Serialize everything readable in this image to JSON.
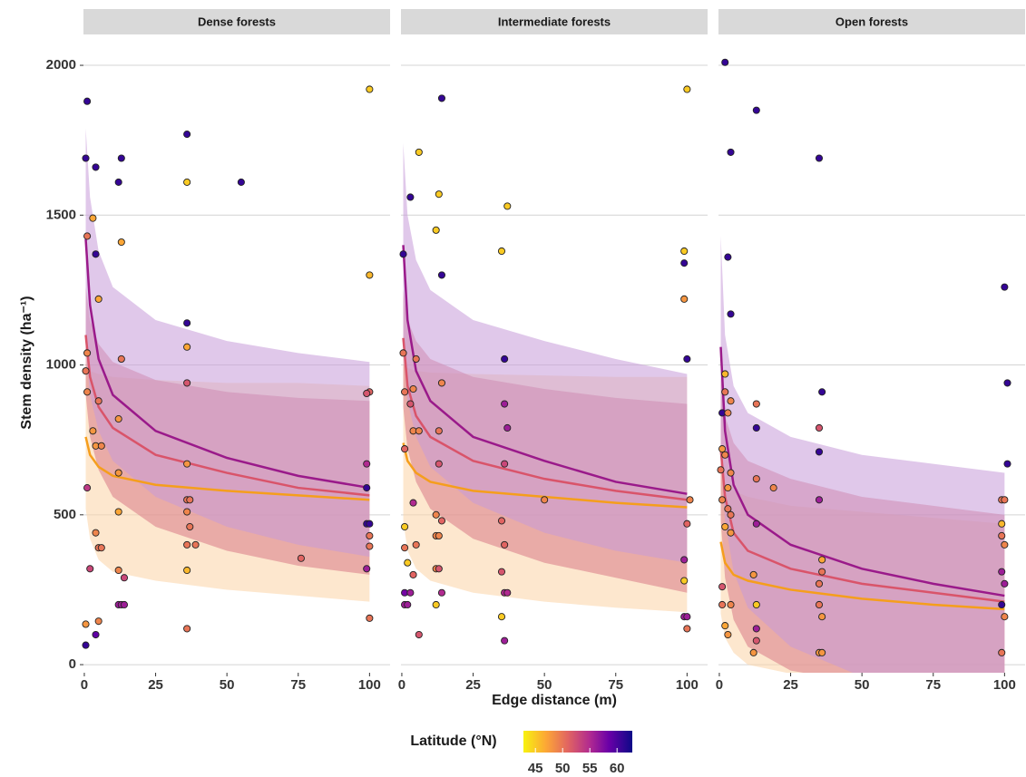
{
  "chart_data": {
    "type": "facet_scatter",
    "ylabel": "Stem density (ha⁻¹)",
    "xlabel": "Edge distance (m)",
    "xlim": [
      -0.3,
      107.2
    ],
    "ylim": [
      -27,
      2103
    ],
    "xticks": [
      0,
      25,
      50,
      75,
      100
    ],
    "yticks": [
      0,
      500,
      1000,
      1500,
      2000
    ],
    "grid": true,
    "colorbar": {
      "title": "Latitude (°N)",
      "lim": [
        42.8,
        62.8
      ],
      "ticks": [
        45,
        50,
        55,
        60
      ],
      "stops": [
        {
          "value": 42.8,
          "color": "#f7f20f"
        },
        {
          "value": 47,
          "color": "#fca636"
        },
        {
          "value": 51,
          "color": "#e16462"
        },
        {
          "value": 55,
          "color": "#b12a90"
        },
        {
          "value": 58.5,
          "color": "#6a00a8"
        },
        {
          "value": 62.8,
          "color": "#0d0887"
        }
      ]
    },
    "curve_x": [
      0.5,
      2,
      5,
      10,
      25,
      50,
      75,
      100
    ],
    "facets": [
      {
        "title": "Dense forests",
        "points": {
          "x": [
            1,
            0.5,
            4,
            12,
            13,
            36,
            55,
            100,
            36,
            3,
            1,
            4,
            13,
            5,
            36,
            36,
            1,
            13,
            0.5,
            1,
            36,
            100,
            99,
            5,
            3,
            12,
            4,
            6,
            12,
            99,
            36,
            1,
            99,
            12,
            36,
            37,
            36,
            37,
            36,
            39,
            4,
            5,
            6,
            99,
            100,
            100,
            100,
            99,
            2,
            12,
            14,
            36,
            76,
            12,
            13,
            14,
            5,
            0.5,
            36,
            100,
            4,
            0.5,
            100
          ],
          "y": [
            1880,
            1690,
            1660,
            1610,
            1690,
            1770,
            1610,
            1920,
            1610,
            1490,
            1430,
            1370,
            1410,
            1220,
            1140,
            1060,
            1040,
            1020,
            980,
            910,
            940,
            910,
            905,
            880,
            780,
            820,
            730,
            730,
            640,
            670,
            670,
            590,
            590,
            510,
            550,
            550,
            510,
            460,
            400,
            400,
            440,
            390,
            390,
            470,
            470,
            430,
            395,
            320,
            320,
            315,
            290,
            315,
            355,
            200,
            200,
            200,
            145,
            135,
            120,
            155,
            100,
            65,
            1300
          ],
          "lat": [
            61,
            61,
            61,
            61,
            61,
            61,
            61,
            45,
            45,
            47,
            50,
            61,
            47,
            47,
            61,
            47,
            49,
            50,
            50,
            49,
            52,
            51,
            52,
            50,
            48,
            48,
            48,
            49,
            48,
            55,
            48,
            54,
            61,
            47,
            50,
            50,
            49,
            50,
            50,
            50,
            49,
            50,
            50,
            61,
            61,
            50,
            50,
            56,
            53,
            49,
            53,
            46,
            51,
            56,
            56,
            56,
            49,
            48,
            50,
            50,
            59,
            61,
            46
          ]
        },
        "curves": [
          {
            "color": "#f59e1c",
            "fill": "#fbd3a6",
            "values": [
              760,
              700,
              660,
              630,
              600,
              580,
              565,
              550
            ],
            "lower": [
              520,
              420,
              350,
              310,
              280,
              250,
              230,
              210
            ],
            "upper": [
              1000,
              980,
              970,
              960,
              950,
              940,
              940,
              930
            ]
          },
          {
            "color": "#d9546a",
            "fill": "#d97a86",
            "values": [
              1100,
              960,
              860,
              790,
              700,
              640,
              590,
              565
            ],
            "lower": [
              900,
              760,
              650,
              560,
              460,
              380,
              330,
              300
            ],
            "upper": [
              1260,
              1150,
              1070,
              1010,
              950,
              910,
              890,
              880
            ]
          },
          {
            "color": "#9a1a8a",
            "fill": "#c79ad9",
            "values": [
              1420,
              1200,
              1020,
              900,
              780,
              690,
              630,
              590
            ],
            "lower": [
              1060,
              900,
              780,
              680,
              560,
              460,
              400,
              360
            ],
            "upper": [
              1790,
              1560,
              1380,
              1260,
              1150,
              1080,
              1040,
              1010
            ]
          }
        ]
      },
      {
        "title": "Intermediate forests",
        "points": {
          "x": [
            14,
            100,
            6,
            3,
            13,
            37,
            12,
            35,
            14,
            0.5,
            99,
            99,
            99,
            0.5,
            5,
            36,
            100,
            14,
            1,
            4,
            3,
            36,
            4,
            6,
            13,
            37,
            1,
            36,
            13,
            4,
            50,
            101,
            12,
            14,
            1,
            35,
            100,
            1,
            5,
            12,
            13,
            36,
            2,
            4,
            12,
            13,
            35,
            99,
            99,
            1,
            3,
            14,
            36,
            37,
            1,
            2,
            12,
            35,
            99,
            100,
            36,
            100,
            6
          ],
          "y": [
            1890,
            1920,
            1710,
            1560,
            1570,
            1530,
            1450,
            1380,
            1300,
            1370,
            1380,
            1340,
            1220,
            1040,
            1020,
            1020,
            1020,
            940,
            910,
            920,
            870,
            870,
            780,
            780,
            780,
            790,
            720,
            670,
            670,
            540,
            550,
            550,
            500,
            480,
            460,
            480,
            470,
            390,
            400,
            430,
            430,
            400,
            340,
            300,
            320,
            320,
            310,
            350,
            280,
            240,
            240,
            240,
            240,
            240,
            200,
            200,
            200,
            160,
            160,
            160,
            80,
            120,
            100
          ],
          "lat": [
            61,
            45,
            45,
            61,
            45,
            45,
            45,
            45,
            61,
            61,
            45,
            61,
            48,
            50,
            50,
            61,
            61,
            49,
            50,
            49,
            52,
            56,
            49,
            49,
            50,
            56,
            51,
            53,
            52,
            55,
            49,
            49,
            49,
            51,
            45,
            51,
            51,
            50,
            50,
            49,
            49,
            51,
            45,
            51,
            49,
            52,
            52,
            56,
            45,
            58,
            56,
            55,
            55,
            55,
            56,
            56,
            45,
            45,
            56,
            56,
            56,
            50,
            52
          ]
        },
        "curves": [
          {
            "color": "#f59e1c",
            "fill": "#fbd3a6",
            "values": [
              740,
              680,
              640,
              610,
              580,
              560,
              540,
              525
            ],
            "lower": [
              480,
              380,
              320,
              280,
              240,
              210,
              190,
              175
            ],
            "upper": [
              1000,
              990,
              980,
              975,
              970,
              965,
              960,
              960
            ]
          },
          {
            "color": "#d9546a",
            "fill": "#d97a86",
            "values": [
              1090,
              930,
              830,
              760,
              680,
              620,
              580,
              550
            ],
            "lower": [
              860,
              720,
              610,
              520,
              420,
              340,
              290,
              240
            ],
            "upper": [
              1250,
              1150,
              1080,
              1020,
              960,
              920,
              890,
              870
            ]
          },
          {
            "color": "#9a1a8a",
            "fill": "#c79ad9",
            "values": [
              1400,
              1150,
              980,
              880,
              760,
              680,
              610,
              570
            ],
            "lower": [
              1060,
              880,
              760,
              660,
              540,
              440,
              380,
              340
            ],
            "upper": [
              1740,
              1500,
              1350,
              1250,
              1150,
              1080,
              1020,
              970
            ]
          }
        ]
      },
      {
        "title": "Open forests",
        "points": {
          "x": [
            2,
            4,
            13,
            35,
            3,
            4,
            100,
            101,
            36,
            13,
            1,
            2,
            2,
            4,
            3,
            101,
            13,
            35,
            35,
            1,
            2,
            0.5,
            4,
            13,
            19,
            3,
            1,
            35,
            99,
            100,
            3,
            4,
            2,
            13,
            4,
            99,
            99,
            100,
            36,
            36,
            35,
            12,
            1,
            4,
            13,
            35,
            36,
            99,
            100,
            99,
            100,
            2,
            3,
            13,
            13,
            12,
            35,
            36,
            99,
            1
          ],
          "y": [
            2010,
            1710,
            1850,
            1690,
            1360,
            1170,
            1260,
            940,
            910,
            870,
            840,
            970,
            910,
            880,
            840,
            670,
            790,
            790,
            710,
            720,
            700,
            650,
            640,
            620,
            590,
            590,
            550,
            550,
            550,
            550,
            520,
            500,
            460,
            470,
            440,
            470,
            430,
            400,
            350,
            310,
            270,
            300,
            260,
            200,
            200,
            200,
            160,
            310,
            270,
            200,
            160,
            130,
            100,
            120,
            80,
            40,
            40,
            40,
            40,
            200
          ],
          "lat": [
            61,
            61,
            61,
            61,
            61,
            61,
            61,
            61,
            61,
            50,
            61,
            46,
            50,
            49,
            49,
            61,
            61,
            52,
            61,
            48,
            49,
            50,
            49,
            50,
            49,
            48,
            49,
            56,
            50,
            50,
            50,
            50,
            47,
            56,
            48,
            46,
            50,
            49,
            47,
            50,
            50,
            48,
            52,
            49,
            45,
            50,
            48,
            56,
            56,
            61,
            49,
            47,
            48,
            56,
            52,
            48,
            48,
            48,
            50,
            50
          ]
        },
        "curves": [
          {
            "color": "#f59e1c",
            "fill": "#fbd3a6",
            "values": [
              410,
              340,
              300,
              280,
              250,
              220,
              200,
              185
            ],
            "lower": [
              170,
              90,
              40,
              0,
              -30,
              -60,
              -80,
              -100
            ],
            "upper": [
              660,
              600,
              580,
              560,
              530,
              510,
              490,
              470
            ]
          },
          {
            "color": "#d9546a",
            "fill": "#d97a86",
            "values": [
              720,
              560,
              440,
              380,
              320,
              270,
              240,
              210
            ],
            "lower": [
              480,
              290,
              150,
              60,
              -20,
              -60,
              -80,
              -100
            ],
            "upper": [
              960,
              830,
              740,
              680,
              620,
              560,
              530,
              500
            ]
          },
          {
            "color": "#9a1a8a",
            "fill": "#c79ad9",
            "values": [
              1060,
              780,
              600,
              500,
              400,
              320,
              270,
              230
            ],
            "lower": [
              700,
              480,
              310,
              190,
              60,
              -40,
              -90,
              -120
            ],
            "upper": [
              1430,
              1100,
              930,
              840,
              760,
              700,
              670,
              640
            ]
          }
        ]
      }
    ]
  }
}
